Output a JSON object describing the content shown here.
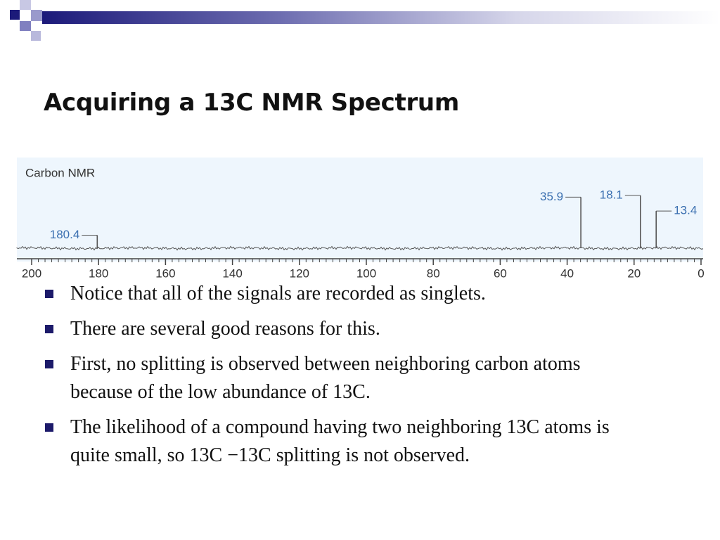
{
  "title": "Acquiring a 13C NMR Spectrum",
  "figure": {
    "type": "spectrum",
    "label": "Carbon NMR",
    "xlim": [
      200,
      0
    ],
    "xticks": [
      200,
      180,
      160,
      140,
      120,
      100,
      80,
      60,
      40,
      20,
      0
    ],
    "peaks": {
      "x": [
        180.4,
        35.9,
        18.1,
        13.4
      ],
      "intensities": [
        0.15,
        0.59,
        0.61,
        0.43
      ]
    },
    "color": "#555555",
    "label_color": "#3a6fb0"
  },
  "bullets": [
    "Notice that all of the signals are recorded as singlets.",
    "There are several good reasons for this.",
    "First, no splitting is observed between neighboring carbon atoms because of the low abundance of 13C.",
    "The likelihood of a compound having two neighboring 13C atoms is quite small, so 13C −13C splitting is not observed."
  ]
}
